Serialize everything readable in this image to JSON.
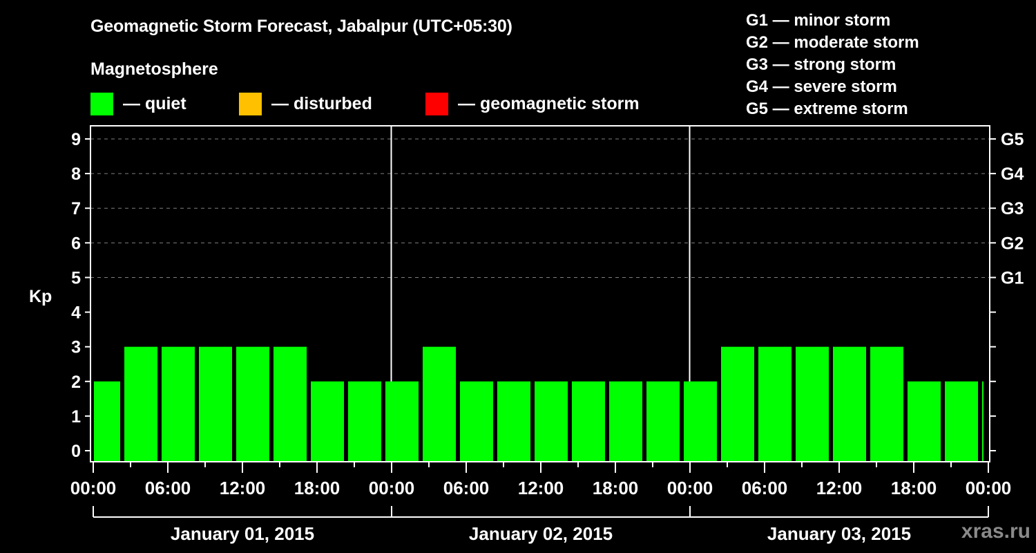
{
  "header": {
    "title": "Geomagnetic Storm Forecast, Jabalpur (UTC+05:30)",
    "subtitle": "Magnetosphere"
  },
  "legend": {
    "items": [
      {
        "label": "— quiet",
        "color": "#00ff00"
      },
      {
        "label": "— disturbed",
        "color": "#ffc000"
      },
      {
        "label": "— geomagnetic storm",
        "color": "#ff0000"
      }
    ]
  },
  "g_scale": {
    "items": [
      {
        "label": "G1 — minor storm"
      },
      {
        "label": "G2 — moderate storm"
      },
      {
        "label": "G3 — strong storm"
      },
      {
        "label": "G4 — severe storm"
      },
      {
        "label": "G5 — extreme storm"
      }
    ]
  },
  "watermark": "xras.ru",
  "colors": {
    "background": "#000000",
    "axis": "#ffffff",
    "grid": "#808080",
    "quiet": "#00ff00",
    "disturbed": "#ffc000",
    "storm": "#ff0000",
    "watermark": "#8a8a8a"
  },
  "chart_data": {
    "type": "bar",
    "title": "Geomagnetic Storm Forecast, Jabalpur (UTC+05:30)",
    "ylabel": "Kp",
    "xlabel": "",
    "ylim": [
      0,
      9
    ],
    "yticks": [
      0,
      1,
      2,
      3,
      4,
      5,
      6,
      7,
      8,
      9
    ],
    "right_axis_labels": [
      {
        "kp": 5,
        "label": "G1"
      },
      {
        "kp": 6,
        "label": "G2"
      },
      {
        "kp": 7,
        "label": "G3"
      },
      {
        "kp": 8,
        "label": "G4"
      },
      {
        "kp": 9,
        "label": "G5"
      }
    ],
    "grid": "dashed horizontal at Kp 5-9",
    "xtick_labels": [
      "00:00",
      "06:00",
      "12:00",
      "18:00",
      "00:00",
      "06:00",
      "12:00",
      "18:00",
      "00:00",
      "06:00",
      "12:00",
      "18:00",
      "00:00"
    ],
    "day_labels": [
      "January 01, 2015",
      "January 02, 2015",
      "January 03, 2015"
    ],
    "bin_hours": 3,
    "categories": [
      "Jan01 00:00-02:30",
      "Jan01 02:30-05:30",
      "Jan01 05:30-08:30",
      "Jan01 08:30-11:30",
      "Jan01 11:30-14:30",
      "Jan01 14:30-17:30",
      "Jan01 17:30-20:30",
      "Jan01 20:30-23:30",
      "Jan01 23:30-Jan02 02:30",
      "Jan02 02:30-05:30",
      "Jan02 05:30-08:30",
      "Jan02 08:30-11:30",
      "Jan02 11:30-14:30",
      "Jan02 14:30-17:30",
      "Jan02 17:30-20:30",
      "Jan02 20:30-23:30",
      "Jan02 23:30-Jan03 02:30",
      "Jan03 02:30-05:30",
      "Jan03 05:30-08:30",
      "Jan03 08:30-11:30",
      "Jan03 11:30-14:30",
      "Jan03 14:30-17:30",
      "Jan03 17:30-20:30",
      "Jan03 20:30-23:30",
      "Jan03 23:30-24:00"
    ],
    "values": [
      2,
      3,
      3,
      3,
      3,
      3,
      2,
      2,
      2,
      3,
      2,
      2,
      2,
      2,
      2,
      2,
      2,
      3,
      3,
      3,
      3,
      3,
      2,
      2,
      2
    ],
    "status": [
      "quiet",
      "quiet",
      "quiet",
      "quiet",
      "quiet",
      "quiet",
      "quiet",
      "quiet",
      "quiet",
      "quiet",
      "quiet",
      "quiet",
      "quiet",
      "quiet",
      "quiet",
      "quiet",
      "quiet",
      "quiet",
      "quiet",
      "quiet",
      "quiet",
      "quiet",
      "quiet",
      "quiet",
      "quiet"
    ]
  }
}
